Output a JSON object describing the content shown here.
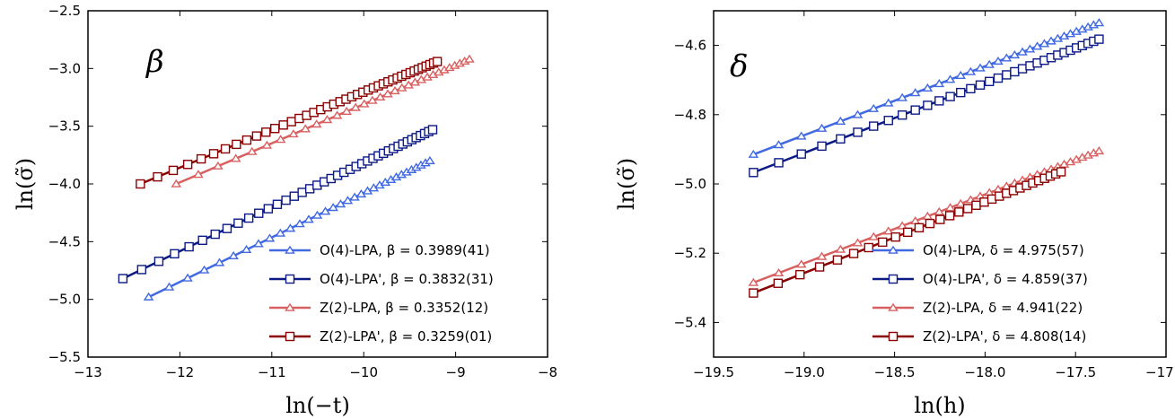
{
  "chart_data": [
    {
      "type": "scatter",
      "panel_label": "β",
      "xlabel": "ln(−t)",
      "ylabel": "ln(σ̃)",
      "xlim": [
        -13,
        -8
      ],
      "ylim": [
        -5.5,
        -2.5
      ],
      "xticks": [
        -13,
        -12,
        -11,
        -10,
        -9,
        -8
      ],
      "xtick_labels": [
        "−13",
        "−12",
        "−11",
        "−10",
        "−9",
        "−8"
      ],
      "yticks": [
        -5.5,
        -5.0,
        -4.5,
        -4.0,
        -3.5,
        -3.0,
        -2.5
      ],
      "ytick_labels": [
        "−5.5",
        "−5.0",
        "−4.5",
        "−4.0",
        "−3.5",
        "−3.0",
        "−2.5"
      ],
      "legend_position": "lower right",
      "series": [
        {
          "name": "O(4)-LPA, β = 0.3989(41)",
          "color": "#4169e1",
          "marker": "triangle",
          "x_start": -12.34,
          "x_end": -9.28,
          "n": 33,
          "fit_x": [
            -12.34,
            -9.28
          ],
          "fit_y": [
            -4.98,
            -3.8
          ]
        },
        {
          "name": "O(4)-LPA', β = 0.3832(31)",
          "color": "#0c1a85",
          "marker": "square",
          "x_start": -12.62,
          "x_end": -9.25,
          "n": 40,
          "fit_x": [
            -12.62,
            -9.25
          ],
          "fit_y": [
            -4.82,
            -3.53
          ]
        },
        {
          "name": "Z(2)-LPA, β = 0.3352(12)",
          "color": "#d96060",
          "marker": "triangle",
          "x_start": -12.04,
          "x_end": -8.85,
          "n": 32,
          "fit_x": [
            -12.04,
            -8.85
          ],
          "fit_y": [
            -4.0,
            -2.92
          ]
        },
        {
          "name": "Z(2)-LPA', β = 0.3259(01)",
          "color": "#8b0000",
          "marker": "square",
          "x_start": -12.43,
          "x_end": -9.2,
          "n": 42,
          "fit_x": [
            -12.43,
            -9.2
          ],
          "fit_y": [
            -4.0,
            -2.94
          ]
        }
      ]
    },
    {
      "type": "scatter",
      "panel_label": "δ",
      "xlabel": "ln(h)",
      "ylabel": "ln(σ̃)",
      "xlim": [
        -19.5,
        -17.0
      ],
      "ylim": [
        -5.5,
        -4.5
      ],
      "xticks": [
        -19.5,
        -19.0,
        -18.5,
        -18.0,
        -17.5,
        -17.0
      ],
      "xtick_labels": [
        "−19.5",
        "−19.0",
        "−18.5",
        "−18.0",
        "−17.5",
        "−17.0"
      ],
      "yticks": [
        -5.4,
        -5.2,
        -5.0,
        -4.8,
        -4.6
      ],
      "ytick_labels": [
        "−5.4",
        "−5.2",
        "−5.0",
        "−4.8",
        "−4.6"
      ],
      "legend_position": "lower right",
      "series": [
        {
          "name": "O(4)-LPA, δ = 4.975(57)",
          "color": "#4169e1",
          "marker": "triangle",
          "x_start": -19.28,
          "x_end": -17.37,
          "n": 33,
          "fit_x": [
            -19.28,
            -17.37
          ],
          "fit_y": [
            -4.915,
            -4.535
          ]
        },
        {
          "name": "O(4)-LPA', δ = 4.859(37)",
          "color": "#0c1a85",
          "marker": "square",
          "x_start": -19.28,
          "x_end": -17.37,
          "n": 33,
          "fit_x": [
            -19.28,
            -17.37
          ],
          "fit_y": [
            -4.967,
            -4.582
          ]
        },
        {
          "name": "Z(2)-LPA, δ = 4.941(22)",
          "color": "#d96060",
          "marker": "triangle",
          "x_start": -19.28,
          "x_end": -17.37,
          "n": 33,
          "fit_x": [
            -19.28,
            -17.37
          ],
          "fit_y": [
            -5.285,
            -4.905
          ]
        },
        {
          "name": "Z(2)-LPA', δ = 4.808(14)",
          "color": "#8b0000",
          "marker": "square",
          "x_start": -19.28,
          "x_end": -17.58,
          "n": 30,
          "fit_x": [
            -19.28,
            -17.58
          ],
          "fit_y": [
            -5.315,
            -4.965
          ]
        }
      ]
    }
  ]
}
